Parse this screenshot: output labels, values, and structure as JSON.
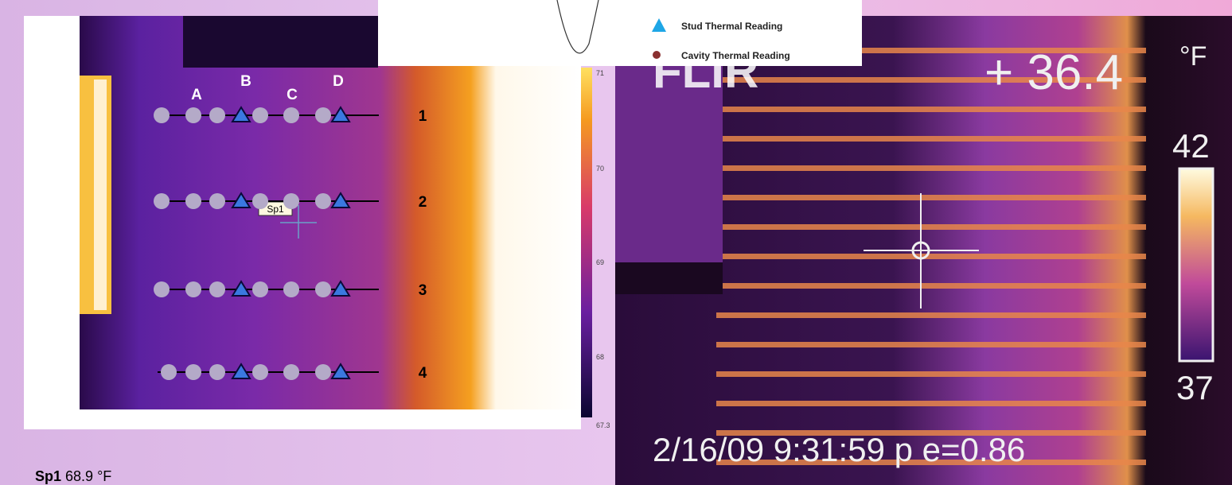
{
  "left_image": {
    "column_labels": [
      "A",
      "B",
      "C",
      "D"
    ],
    "row_labels": [
      "1",
      "2",
      "3",
      "4"
    ],
    "spot_tag": "Sp1",
    "scale_labels": [
      "71",
      "70",
      "69",
      "68",
      "67.3"
    ]
  },
  "spot_reading": {
    "name": "Sp1",
    "value": "68.9 °F"
  },
  "legend": {
    "items": [
      "Stud Thermal Reading",
      "Cavity Thermal Reading"
    ]
  },
  "right_image": {
    "logo": "FLIR",
    "reading": "+ 36.4",
    "unit": "°F",
    "scale_max": "42",
    "scale_min": "37",
    "timestamp": "2/16/09 9:31:59 p e=0.86"
  }
}
